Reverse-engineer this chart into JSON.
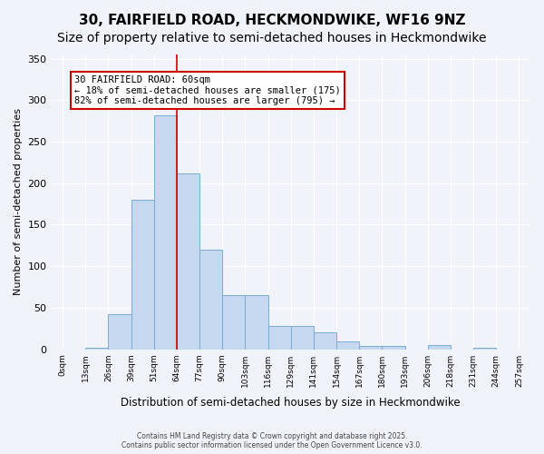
{
  "title": "30, FAIRFIELD ROAD, HECKMONDWIKE, WF16 9NZ",
  "subtitle": "Size of property relative to semi-detached houses in Heckmondwike",
  "xlabel": "Distribution of semi-detached houses by size in Heckmondwike",
  "ylabel": "Number of semi-detached properties",
  "bins": [
    0,
    13,
    26,
    39,
    51,
    64,
    77,
    90,
    103,
    116,
    129,
    141,
    154,
    167,
    180,
    193,
    206,
    218,
    231,
    244,
    257
  ],
  "bin_labels": [
    "0sqm",
    "13sqm",
    "26sqm",
    "39sqm",
    "51sqm",
    "64sqm",
    "77sqm",
    "90sqm",
    "103sqm",
    "116sqm",
    "129sqm",
    "141sqm",
    "154sqm",
    "167sqm",
    "180sqm",
    "193sqm",
    "206sqm",
    "218sqm",
    "231sqm",
    "244sqm",
    "257sqm"
  ],
  "counts": [
    0,
    2,
    42,
    180,
    282,
    212,
    120,
    65,
    65,
    28,
    28,
    20,
    10,
    4,
    4,
    0,
    5,
    0,
    2,
    0
  ],
  "bar_color": "#c5d8f0",
  "bar_edge_color": "#7aadd4",
  "property_size": 60,
  "property_line_x": 64,
  "annotation_title": "30 FAIRFIELD ROAD: 60sqm",
  "annotation_line1": "← 18% of semi-detached houses are smaller (175)",
  "annotation_line2": "82% of semi-detached houses are larger (795) →",
  "annotation_box_color": "#ffffff",
  "annotation_box_edge": "#cc0000",
  "vline_color": "#cc0000",
  "ylim": [
    0,
    355
  ],
  "footer1": "Contains HM Land Registry data © Crown copyright and database right 2025.",
  "footer2": "Contains public sector information licensed under the Open Government Licence v3.0.",
  "bg_color": "#f0f4fa",
  "title_fontsize": 11,
  "subtitle_fontsize": 10
}
